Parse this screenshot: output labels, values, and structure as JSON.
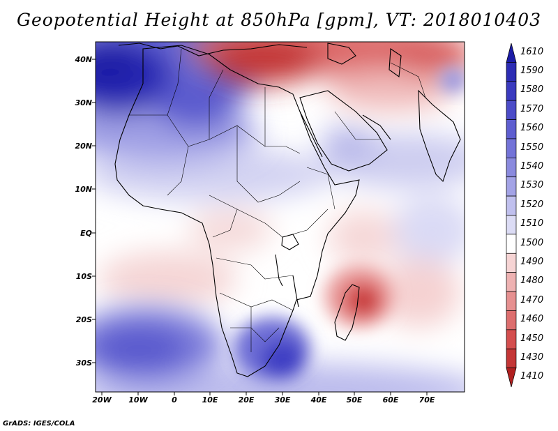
{
  "title": "Geopotential Height at 850hPa [gpm], VT: 2018010403",
  "credit": "GrADS: IGES/COLA",
  "lat_labels": [
    "40N",
    "30N",
    "20N",
    "10N",
    "EQ",
    "10S",
    "20S",
    "30S"
  ],
  "lon_labels": [
    "20W",
    "10W",
    "0",
    "10E",
    "20E",
    "30E",
    "40E",
    "50E",
    "60E",
    "70E"
  ],
  "colorbar": {
    "labels": [
      "1610",
      "1590",
      "1580",
      "1570",
      "1560",
      "1550",
      "1540",
      "1530",
      "1520",
      "1510",
      "1500",
      "1490",
      "1480",
      "1470",
      "1460",
      "1450",
      "1430",
      "1410"
    ],
    "colors": [
      "#1c1ca6",
      "#2c2cb4",
      "#3a3abf",
      "#4c4cc8",
      "#5e5ed0",
      "#7373d8",
      "#8a8ade",
      "#a3a3e6",
      "#c0c0ee",
      "#dcdcf5",
      "#ffffff",
      "#f6d4d4",
      "#eeb2b2",
      "#e69090",
      "#dd6e6e",
      "#d44e4e",
      "#c43636",
      "#b02020"
    ]
  },
  "colors": {
    "high": "#1c1ca6",
    "low": "#b02020",
    "neutral": "#ffffff"
  }
}
